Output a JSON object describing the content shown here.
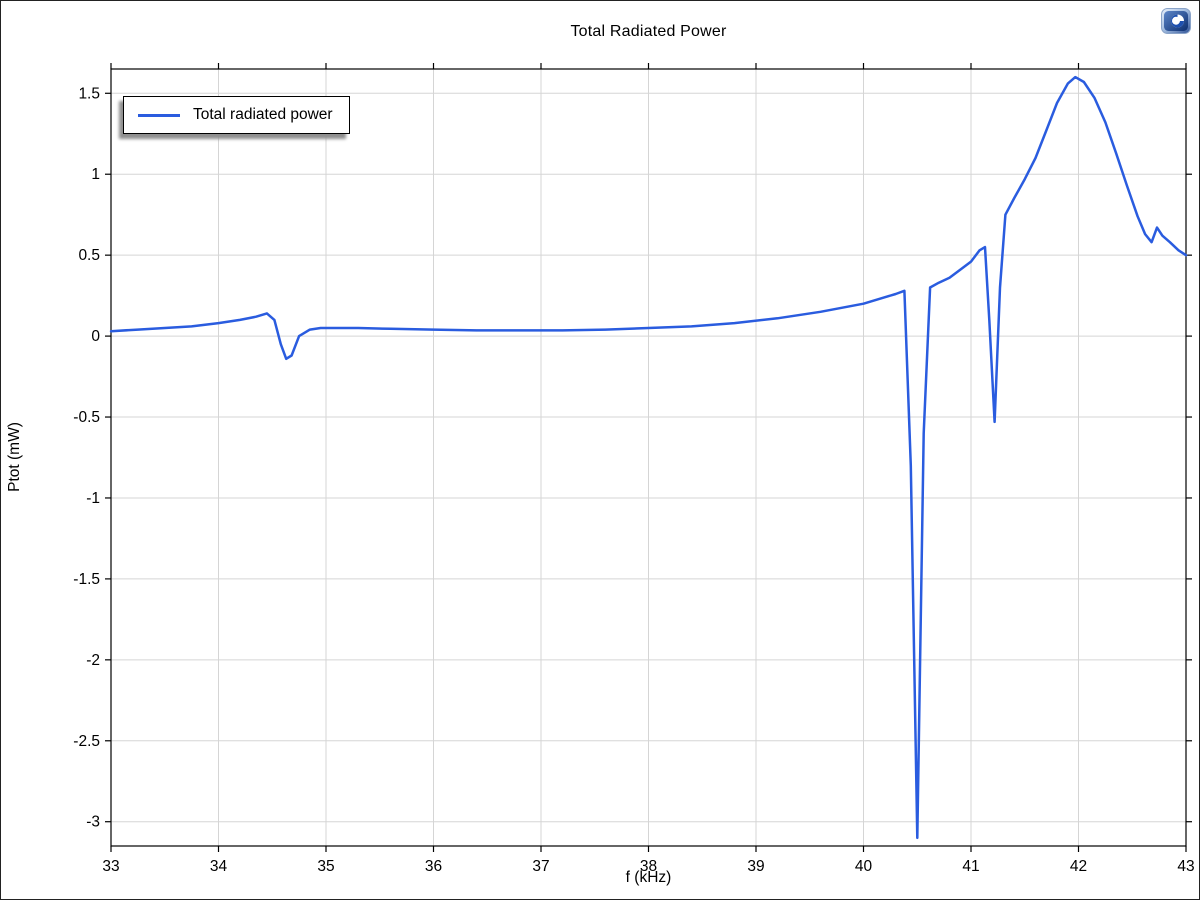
{
  "window": {
    "title": "Total Radiated Power"
  },
  "logo": {
    "name": "comsol-logo"
  },
  "chart_data": {
    "type": "line",
    "title": "Total Radiated Power",
    "xlabel": "f (kHz)",
    "ylabel": "Ptot (mW)",
    "xlim": [
      33,
      43
    ],
    "ylim": [
      -3.15,
      1.65
    ],
    "xticks": [
      33,
      34,
      35,
      36,
      37,
      38,
      39,
      40,
      41,
      42,
      43
    ],
    "yticks": [
      -3,
      -2.5,
      -2,
      -1.5,
      -1,
      -0.5,
      0,
      0.5,
      1,
      1.5
    ],
    "grid": true,
    "grid_color": "#d5d5d5",
    "axis_color": "#000000",
    "legend_position": "top-left",
    "series": [
      {
        "name": "Total radiated power",
        "color": "#2a5cdf",
        "x": [
          33.0,
          33.25,
          33.5,
          33.75,
          34.0,
          34.2,
          34.35,
          34.45,
          34.52,
          34.58,
          34.63,
          34.68,
          34.75,
          34.85,
          34.95,
          35.1,
          35.3,
          35.6,
          36.0,
          36.4,
          36.8,
          37.2,
          37.6,
          38.0,
          38.4,
          38.8,
          39.2,
          39.6,
          40.0,
          40.2,
          40.3,
          40.38,
          40.44,
          40.5,
          40.56,
          40.62,
          40.7,
          40.8,
          40.9,
          41.0,
          41.08,
          41.13,
          41.17,
          41.22,
          41.27,
          41.32,
          41.4,
          41.5,
          41.6,
          41.7,
          41.8,
          41.9,
          41.97,
          42.05,
          42.15,
          42.25,
          42.35,
          42.45,
          42.55,
          42.62,
          42.68,
          42.73,
          42.78,
          42.85,
          42.93,
          43.0
        ],
        "y": [
          0.03,
          0.04,
          0.05,
          0.06,
          0.08,
          0.1,
          0.12,
          0.14,
          0.1,
          -0.05,
          -0.14,
          -0.12,
          0.0,
          0.04,
          0.05,
          0.05,
          0.05,
          0.045,
          0.04,
          0.035,
          0.035,
          0.035,
          0.04,
          0.05,
          0.06,
          0.08,
          0.11,
          0.15,
          0.2,
          0.24,
          0.26,
          0.28,
          -0.8,
          -3.1,
          -0.6,
          0.3,
          0.33,
          0.36,
          0.41,
          0.46,
          0.53,
          0.55,
          0.1,
          -0.53,
          0.3,
          0.75,
          0.85,
          0.97,
          1.1,
          1.27,
          1.44,
          1.56,
          1.6,
          1.57,
          1.47,
          1.32,
          1.13,
          0.93,
          0.74,
          0.63,
          0.58,
          0.67,
          0.62,
          0.58,
          0.53,
          0.5
        ]
      }
    ]
  }
}
